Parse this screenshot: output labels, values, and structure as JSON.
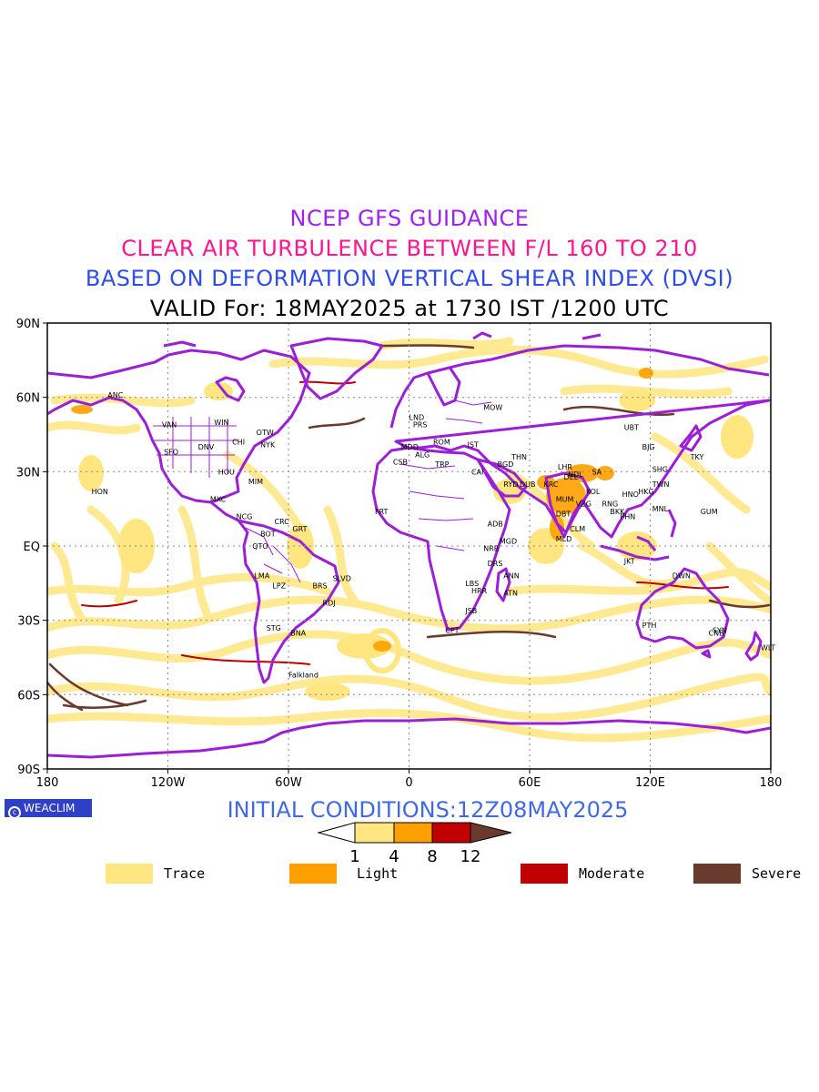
{
  "header": {
    "line1": "NCEP GFS GUIDANCE",
    "line2": "CLEAR AIR TURBULENCE BETWEEN F/L 160 TO 210",
    "line3": "BASED ON DEFORMATION VERTICAL SHEAR INDEX (DVSI)",
    "line4": "VALID For: 18MAY2025 at 1730 IST /1200 UTC"
  },
  "colors": {
    "title1": "#a020f0",
    "title2": "#ff1493",
    "title3": "#2d4de6",
    "coast": "#9b1fd6",
    "trace": "#ffe680",
    "light": "#ffa000",
    "moderate": "#c00000",
    "severe": "#6b3a2e",
    "grid": "#888888"
  },
  "map": {
    "lat_ticks": [
      "90N",
      "60N",
      "30N",
      "EQ",
      "30S",
      "60S",
      "90S"
    ],
    "lon_ticks": [
      "180",
      "120W",
      "60W",
      "0",
      "60E",
      "120E",
      "180"
    ],
    "stations": [
      {
        "code": "ANC",
        "lon": -150,
        "lat": 61
      },
      {
        "code": "HON",
        "lon": -158,
        "lat": 22
      },
      {
        "code": "VAN",
        "lon": -123,
        "lat": 49
      },
      {
        "code": "SFO",
        "lon": -122,
        "lat": 38
      },
      {
        "code": "DNV",
        "lon": -105,
        "lat": 40
      },
      {
        "code": "WIN",
        "lon": -97,
        "lat": 50
      },
      {
        "code": "OTW",
        "lon": -76,
        "lat": 46
      },
      {
        "code": "NYK",
        "lon": -74,
        "lat": 41
      },
      {
        "code": "CHI",
        "lon": -88,
        "lat": 42
      },
      {
        "code": "HOU",
        "lon": -95,
        "lat": 30
      },
      {
        "code": "MIM",
        "lon": -80,
        "lat": 26
      },
      {
        "code": "MXC",
        "lon": -99,
        "lat": 19
      },
      {
        "code": "NCG",
        "lon": -86,
        "lat": 12
      },
      {
        "code": "CRC",
        "lon": -67,
        "lat": 10
      },
      {
        "code": "BOT",
        "lon": -74,
        "lat": 5
      },
      {
        "code": "GRT",
        "lon": -58,
        "lat": 7
      },
      {
        "code": "QTO",
        "lon": -78,
        "lat": 0
      },
      {
        "code": "LMA",
        "lon": -77,
        "lat": -12
      },
      {
        "code": "LPZ",
        "lon": -68,
        "lat": -16
      },
      {
        "code": "BRS",
        "lon": -48,
        "lat": -16
      },
      {
        "code": "SLVD",
        "lon": -38,
        "lat": -13
      },
      {
        "code": "RDJ",
        "lon": -43,
        "lat": -23
      },
      {
        "code": "STG",
        "lon": -71,
        "lat": -33
      },
      {
        "code": "BNA",
        "lon": -59,
        "lat": -35
      },
      {
        "code": "Falkland",
        "lon": -60,
        "lat": -52
      },
      {
        "code": "MDD",
        "lon": -4,
        "lat": 40
      },
      {
        "code": "CSB",
        "lon": -8,
        "lat": 34
      },
      {
        "code": "ALG",
        "lon": 3,
        "lat": 37
      },
      {
        "code": "TRP",
        "lon": 13,
        "lat": 33
      },
      {
        "code": "ROM",
        "lon": 12,
        "lat": 42
      },
      {
        "code": "IST",
        "lon": 29,
        "lat": 41
      },
      {
        "code": "MOW",
        "lon": 37,
        "lat": 56
      },
      {
        "code": "PRS",
        "lon": 2,
        "lat": 49
      },
      {
        "code": "LND",
        "lon": 0,
        "lat": 52
      },
      {
        "code": "CAI",
        "lon": 31,
        "lat": 30
      },
      {
        "code": "BGD",
        "lon": 44,
        "lat": 33
      },
      {
        "code": "THN",
        "lon": 51,
        "lat": 36
      },
      {
        "code": "RYD",
        "lon": 47,
        "lat": 25
      },
      {
        "code": "DUB",
        "lon": 55,
        "lat": 25
      },
      {
        "code": "KRC",
        "lon": 67,
        "lat": 25
      },
      {
        "code": "MUM",
        "lon": 73,
        "lat": 19
      },
      {
        "code": "DBT",
        "lon": 73,
        "lat": 13
      },
      {
        "code": "VZG",
        "lon": 83,
        "lat": 17
      },
      {
        "code": "CLM",
        "lon": 80,
        "lat": 7
      },
      {
        "code": "MLD",
        "lon": 73,
        "lat": 3
      },
      {
        "code": "DEL",
        "lon": 77,
        "lat": 28
      },
      {
        "code": "NDL",
        "lon": 79,
        "lat": 29
      },
      {
        "code": "KOL",
        "lon": 88,
        "lat": 22
      },
      {
        "code": "LHR",
        "lon": 74,
        "lat": 32
      },
      {
        "code": "SA",
        "lon": 91,
        "lat": 30
      },
      {
        "code": "RNG",
        "lon": 96,
        "lat": 17
      },
      {
        "code": "BKK",
        "lon": 100,
        "lat": 14
      },
      {
        "code": "HNO",
        "lon": 106,
        "lat": 21
      },
      {
        "code": "HKG",
        "lon": 114,
        "lat": 22
      },
      {
        "code": "TWN",
        "lon": 121,
        "lat": 25
      },
      {
        "code": "SHG",
        "lon": 121,
        "lat": 31
      },
      {
        "code": "BJG",
        "lon": 116,
        "lat": 40
      },
      {
        "code": "UBT",
        "lon": 107,
        "lat": 48
      },
      {
        "code": "TKY",
        "lon": 140,
        "lat": 36
      },
      {
        "code": "MNL",
        "lon": 121,
        "lat": 15
      },
      {
        "code": "GUM",
        "lon": 145,
        "lat": 14
      },
      {
        "code": "PHN",
        "lon": 105,
        "lat": 12
      },
      {
        "code": "JKT",
        "lon": 107,
        "lat": -6
      },
      {
        "code": "DWN",
        "lon": 131,
        "lat": -12
      },
      {
        "code": "PTH",
        "lon": 116,
        "lat": -32
      },
      {
        "code": "SYN",
        "lon": 151,
        "lat": -34
      },
      {
        "code": "CNB",
        "lon": 149,
        "lat": -35
      },
      {
        "code": "WLT",
        "lon": 175,
        "lat": -41
      },
      {
        "code": "ADB",
        "lon": 39,
        "lat": 9
      },
      {
        "code": "NRB",
        "lon": 37,
        "lat": -1
      },
      {
        "code": "DRS",
        "lon": 39,
        "lat": -7
      },
      {
        "code": "MGD",
        "lon": 45,
        "lat": 2
      },
      {
        "code": "ANN",
        "lon": 47,
        "lat": -12
      },
      {
        "code": "ATN",
        "lon": 47,
        "lat": -19
      },
      {
        "code": "LBS",
        "lon": 28,
        "lat": -15
      },
      {
        "code": "HRR",
        "lon": 31,
        "lat": -18
      },
      {
        "code": "JSB",
        "lon": 28,
        "lat": -26
      },
      {
        "code": "CPT",
        "lon": 18,
        "lat": -34
      },
      {
        "code": "FRT",
        "lon": -17,
        "lat": 14
      }
    ]
  },
  "footer": {
    "brand": "WEACLIM",
    "initial": "INITIAL CONDITIONS:12Z08MAY2025",
    "colorbar_ticks": [
      "1",
      "4",
      "8",
      "12"
    ]
  },
  "legend": [
    {
      "label": "Trace",
      "color": "#ffe680"
    },
    {
      "label": "Light",
      "color": "#ffa000"
    },
    {
      "label": "Moderate",
      "color": "#c00000"
    },
    {
      "label": "Severe",
      "color": "#6b3a2e"
    }
  ]
}
